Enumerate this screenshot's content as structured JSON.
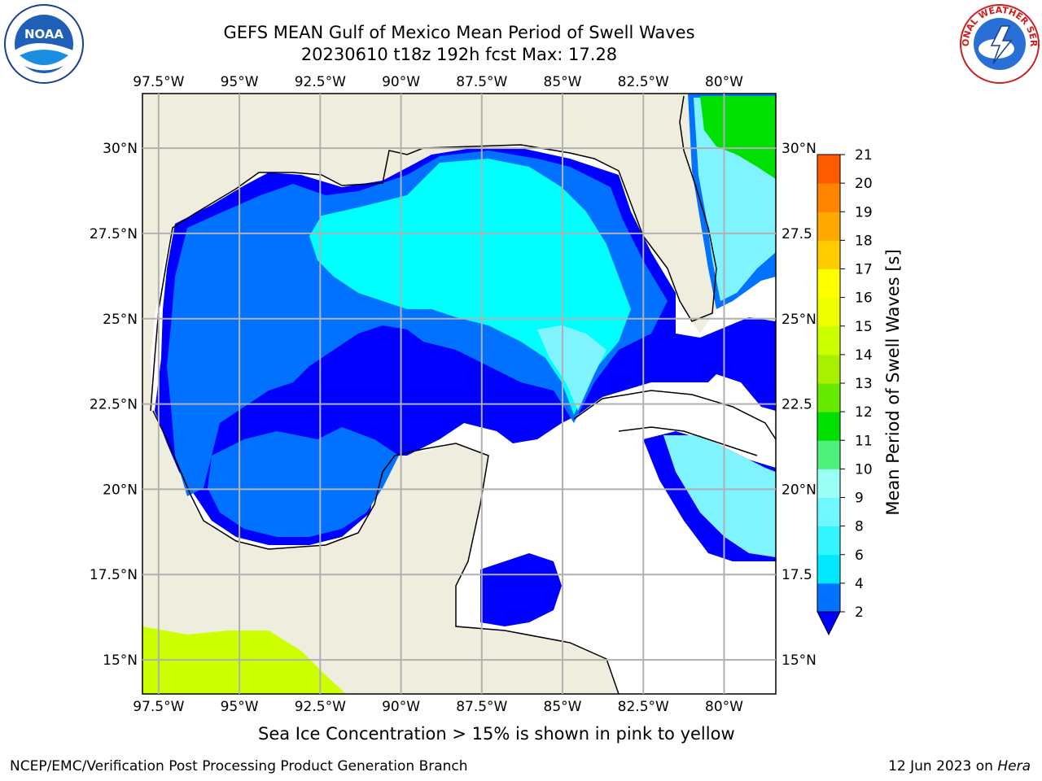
{
  "title": {
    "line1": "GEFS MEAN Gulf of Mexico Mean Period of Swell Waves",
    "line2": "20230610 t18z 192h fcst   Max: 17.28"
  },
  "map": {
    "lon_labels": [
      "97.5°W",
      "95°W",
      "92.5°W",
      "90°W",
      "87.5°W",
      "85°W",
      "82.5°W",
      "80°W"
    ],
    "lat_labels_left": [
      "30°N",
      "27.5°N",
      "25°N",
      "22.5°N",
      "20°N",
      "17.5°N",
      "15°N"
    ],
    "lat_labels_right": [
      "30°N",
      "27.5",
      "25°N",
      "22.5",
      "20°N",
      "17.5",
      "15°N"
    ],
    "lon_values": [
      -97.5,
      -95,
      -92.5,
      -90,
      -87.5,
      -85,
      -82.5,
      -80
    ],
    "lat_values": [
      30,
      27.5,
      25,
      22.5,
      20,
      17.5,
      15
    ],
    "extent": {
      "lon_min": -98,
      "lon_max": -78.4,
      "lat_min": 14,
      "lat_max": 31.6
    },
    "colors": {
      "land": "#efedde",
      "blue": "#0000ff",
      "mid_blue": "#0072ff",
      "cyan": "#00ffff",
      "light_cyan": "#7ff4ff",
      "green": "#00e000",
      "lime": "#ccff00"
    }
  },
  "colorbar": {
    "title": "Mean Period of Swell Waves [s]",
    "ticks": [
      "2",
      "4",
      "6",
      "8",
      "9",
      "10",
      "11",
      "12",
      "13",
      "14",
      "15",
      "16",
      "17",
      "18",
      "19",
      "20",
      "21"
    ],
    "colors": [
      "#0072ff",
      "#00e8ff",
      "#33f5ff",
      "#6ff8ff",
      "#9cfff5",
      "#50f07c",
      "#00e000",
      "#66ea00",
      "#a8f000",
      "#ccff00",
      "#eeff00",
      "#ffff00",
      "#ffcc00",
      "#ffa800",
      "#ff8400",
      "#ff5a00",
      "#ff2800",
      "#ff0000"
    ],
    "extend_color": "#0000ff"
  },
  "footnote": "Sea Ice Concentration > 15% is shown in pink to yellow",
  "footer": {
    "left": "NCEP/EMC/Verification Post Processing Product Generation Branch",
    "right_prefix": "12 Jun 2023 on ",
    "right_machine": "Hera"
  },
  "logos": {
    "noaa_text": "NOAA",
    "nws_text": "NATIONAL WEATHER SERVICE"
  }
}
